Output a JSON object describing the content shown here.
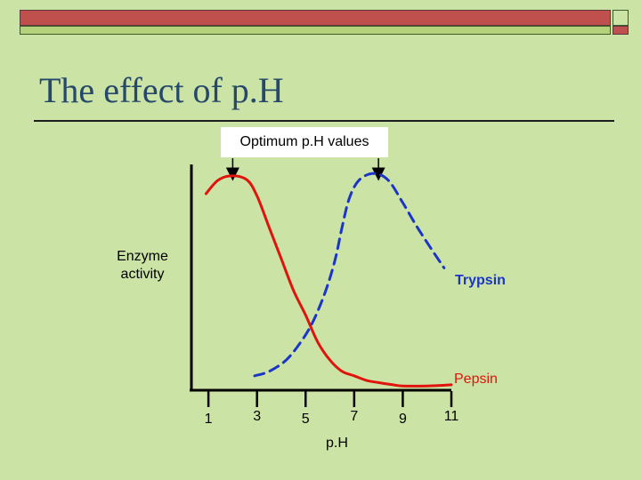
{
  "slide": {
    "title": "The effect of p.H",
    "accent_red": "#c0504d",
    "accent_green": "#b4d27a",
    "background": "#cce3a6",
    "title_color": "#25486b"
  },
  "chart_data": {
    "type": "line",
    "xlabel": "p.H",
    "ylabel": "Enzyme activity",
    "x_ticks": [
      1,
      3,
      5,
      7,
      9,
      11
    ],
    "xlim": [
      0.3,
      11
    ],
    "ylim": [
      0,
      1
    ],
    "grid": false,
    "callout": "Optimum p.H values",
    "optimum_markers": [
      2,
      8
    ],
    "series": [
      {
        "name": "Pepsin",
        "color": "#e0140c",
        "style": "solid",
        "points": [
          [
            0.9,
            0.87
          ],
          [
            1.4,
            0.93
          ],
          [
            2.0,
            0.95
          ],
          [
            2.6,
            0.93
          ],
          [
            3.0,
            0.86
          ],
          [
            3.5,
            0.72
          ],
          [
            4.0,
            0.58
          ],
          [
            4.5,
            0.44
          ],
          [
            5.0,
            0.33
          ],
          [
            5.5,
            0.21
          ],
          [
            6.0,
            0.13
          ],
          [
            6.5,
            0.08
          ],
          [
            7.0,
            0.06
          ],
          [
            7.5,
            0.04
          ],
          [
            8.0,
            0.03
          ],
          [
            8.6,
            0.02
          ],
          [
            9.0,
            0.015
          ],
          [
            10.0,
            0.015
          ],
          [
            11.0,
            0.02
          ]
        ]
      },
      {
        "name": "Trypsin",
        "color": "#1a35c8",
        "style": "dashed",
        "points": [
          [
            2.9,
            0.06
          ],
          [
            3.5,
            0.08
          ],
          [
            4.2,
            0.13
          ],
          [
            4.8,
            0.21
          ],
          [
            5.3,
            0.3
          ],
          [
            5.8,
            0.43
          ],
          [
            6.2,
            0.57
          ],
          [
            6.5,
            0.72
          ],
          [
            6.8,
            0.85
          ],
          [
            7.2,
            0.93
          ],
          [
            7.8,
            0.96
          ],
          [
            8.4,
            0.93
          ],
          [
            9.0,
            0.83
          ],
          [
            9.6,
            0.72
          ],
          [
            10.2,
            0.62
          ],
          [
            10.7,
            0.54
          ]
        ]
      }
    ]
  }
}
